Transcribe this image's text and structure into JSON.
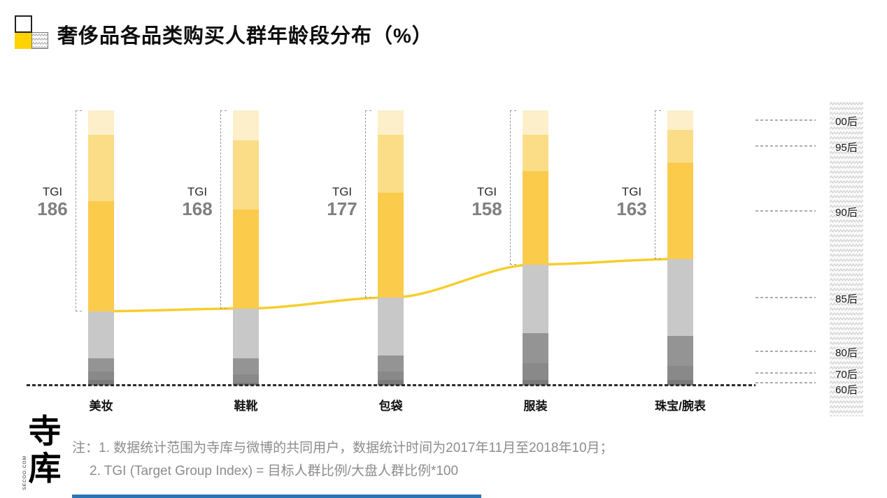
{
  "title": {
    "text": "奢侈品各品类购买人群年龄段分布（%）"
  },
  "chart_data": {
    "type": "stacked-bar+line",
    "title": "奢侈品各品类购买人群年龄段分布（%）",
    "unit": "%",
    "categories": [
      "美妆",
      "鞋靴",
      "包袋",
      "服装",
      "珠宝/腕表"
    ],
    "tgi_label": "TGI",
    "tgi_values": [
      186,
      168,
      177,
      158,
      163
    ],
    "age_groups": [
      "00后",
      "95后",
      "90后",
      "85后",
      "80后",
      "70后",
      "60后"
    ],
    "series": [
      {
        "name": "00后",
        "values": [
          9,
          11,
          9,
          9,
          7
        ],
        "color": "#FCEFC9"
      },
      {
        "name": "95后",
        "values": [
          24,
          25,
          21,
          13,
          12
        ],
        "color": "#FBDD88"
      },
      {
        "name": "90后",
        "values": [
          40,
          36,
          38,
          34,
          35
        ],
        "color": "#FBCB4C"
      },
      {
        "name": "85后",
        "values": [
          17,
          18,
          21,
          25,
          28
        ],
        "color": "#C8C8C8"
      },
      {
        "name": "80后",
        "values": [
          5,
          6,
          6,
          11,
          11
        ],
        "color": "#949494"
      },
      {
        "name": "70后",
        "values": [
          3,
          3,
          3,
          6,
          5
        ],
        "color": "#898989"
      },
      {
        "name": "60后",
        "values": [
          2,
          1,
          2,
          2,
          2
        ],
        "color": "#7B7B7B"
      }
    ],
    "trend_line": {
      "meaning": "90后与85后分界（年轻人群占比）",
      "color": "#F6CE2D"
    },
    "layout_hints": {
      "stack_total": 100,
      "bracket_spans": "yellow segments (00后+95后+90后)",
      "age_axis_side": "right"
    }
  },
  "notes": {
    "line1": "注：1. 数据统计范围为寺库与微博的共同用户，数据统计时间为2017年11月至2018年10月；",
    "line2": "2. TGI (Target Group Index) = 目标人群比例/大盘人群比例*100"
  },
  "logo": {
    "char1": "寺",
    "char2": "库",
    "sub": "SECOO.COM"
  },
  "colors": {
    "accent_yellow": "#FFD200",
    "trend_line": "#F6CE2D",
    "tgi_number": "#7f7f7f",
    "note_text": "#8c8c8c",
    "baseline": "#2d2d2d",
    "band_zigzag": "#c9c9c9",
    "bottom_strip": "#2E75B6"
  }
}
